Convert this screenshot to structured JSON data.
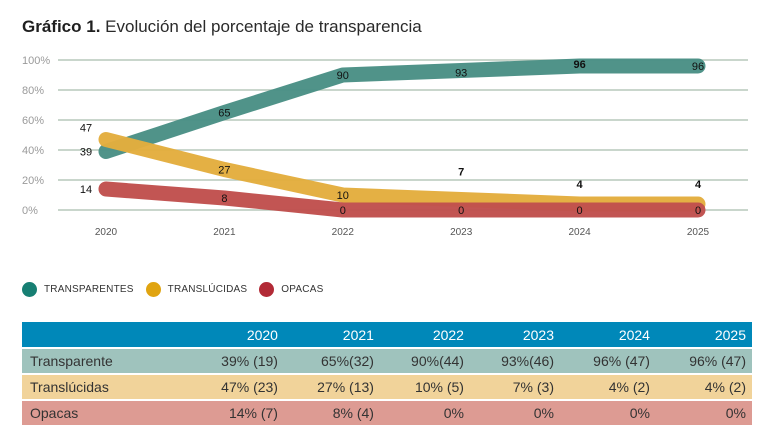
{
  "title": {
    "bold": "Gráfico 1.",
    "text": " Evolución del porcentaje de transparencia"
  },
  "colors": {
    "transparentes": "#4a9085",
    "translucidas": "#e3ad3e",
    "opacas": "#c0504d",
    "legend_transparentes": "#177f73",
    "legend_translucidas": "#e0a411",
    "legend_opacas": "#b22a36",
    "gridline": "#b7c8bb",
    "table_header": "#0088b9"
  },
  "chart_data": {
    "type": "line",
    "title": "Gráfico 1. Evolución del porcentaje de transparencia",
    "xlabel": "",
    "ylabel": "",
    "x": [
      "2020",
      "2021",
      "2022",
      "2023",
      "2024",
      "2025"
    ],
    "yticks": [
      "0%",
      "20%",
      "40%",
      "60%",
      "80%",
      "100%"
    ],
    "ylim": [
      0,
      100
    ],
    "grid": true,
    "legend_position": "bottom-left",
    "series": [
      {
        "name": "TRANSPARENTES",
        "key": "transparentes",
        "values": [
          39,
          65,
          90,
          93,
          96,
          96
        ],
        "labels": [
          "39",
          "65",
          "90",
          "93",
          "96",
          "96"
        ]
      },
      {
        "name": "TRANSLÚCIDAS",
        "key": "translucidas",
        "values": [
          47,
          27,
          10,
          7,
          4,
          4
        ],
        "labels": [
          "47",
          "27",
          "10",
          "7",
          "4",
          "4"
        ]
      },
      {
        "name": "OPACAS",
        "key": "opacas",
        "values": [
          14,
          8,
          0,
          0,
          0,
          0
        ],
        "labels": [
          "14",
          "8",
          "0",
          "0",
          "0",
          "0"
        ]
      }
    ]
  },
  "legend": [
    {
      "label": "TRANSPARENTES",
      "key": "legend_transparentes"
    },
    {
      "label": "TRANSLÚCIDAS",
      "key": "legend_translucidas"
    },
    {
      "label": "OPACAS",
      "key": "legend_opacas"
    }
  ],
  "table": {
    "headers": [
      "",
      "2020",
      "2021",
      "2022",
      "2023",
      "2024",
      "2025"
    ],
    "rows": [
      {
        "label": "Transparente",
        "cells": [
          "39% (19)",
          "65%(32)",
          "90%(44)",
          "93%(46)",
          "96% (47)",
          "96% (47)"
        ]
      },
      {
        "label": "Translúcidas",
        "cells": [
          "47% (23)",
          "27% (13)",
          "10% (5)",
          "7% (3)",
          "4% (2)",
          "4% (2)"
        ]
      },
      {
        "label": "Opacas",
        "cells": [
          "14% (7)",
          "8% (4)",
          "0%",
          "0%",
          "0%",
          "0%"
        ]
      }
    ]
  }
}
